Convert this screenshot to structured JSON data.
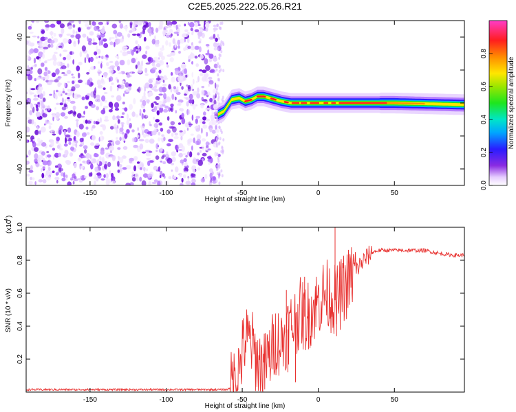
{
  "title": "C2E5.2025.222.05.26.R21",
  "chart_data": [
    {
      "type": "heatmap",
      "xlabel": "Height of straight line (km)",
      "ylabel": "Frequency (Hz)",
      "xlim": [
        -192,
        96
      ],
      "ylim": [
        -50,
        50
      ],
      "x_ticks": [
        -150,
        -100,
        -50,
        0,
        50
      ],
      "y_ticks": [
        -40,
        -20,
        0,
        20,
        40
      ],
      "colorbar": {
        "label": "Normalized spectral amplitude",
        "range": [
          0,
          1
        ],
        "ticks": [
          0.0,
          0.2,
          0.4,
          0.6,
          0.8
        ]
      },
      "noise_region_x": [
        -192,
        -65
      ],
      "signal_track": [
        {
          "x": -66,
          "f": -7
        },
        {
          "x": -62,
          "f": -5
        },
        {
          "x": -57,
          "f": 2
        },
        {
          "x": -52,
          "f": 3
        },
        {
          "x": -48,
          "f": 1
        },
        {
          "x": -44,
          "f": 2
        },
        {
          "x": -40,
          "f": 4
        },
        {
          "x": -36,
          "f": 4
        },
        {
          "x": -32,
          "f": 3
        },
        {
          "x": -28,
          "f": 2
        },
        {
          "x": -24,
          "f": 1
        },
        {
          "x": -18,
          "f": 0
        },
        {
          "x": -10,
          "f": 0
        },
        {
          "x": 0,
          "f": 0
        },
        {
          "x": 20,
          "f": 0
        },
        {
          "x": 50,
          "f": 0
        },
        {
          "x": 96,
          "f": -1
        }
      ]
    },
    {
      "type": "line",
      "xlabel": "Height of straight line (km)",
      "ylabel": "SNR (10 * v/v)",
      "y_multiplier": "(x10",
      "y_multiplier_exp": "4",
      "xlim": [
        -192,
        96
      ],
      "ylim": [
        0,
        1.0
      ],
      "x_ticks": [
        -150,
        -100,
        -50,
        0,
        50
      ],
      "y_ticks": [
        0.2,
        0.4,
        0.6,
        0.8,
        1.0
      ],
      "series": [
        {
          "color": "#e8312f",
          "anchors": [
            {
              "x": -192,
              "y": 0.015
            },
            {
              "x": -60,
              "y": 0.015
            },
            {
              "x": -56,
              "y": 0.04
            },
            {
              "x": -52,
              "y": 0.15
            },
            {
              "x": -48,
              "y": 0.32
            },
            {
              "x": -44,
              "y": 0.3
            },
            {
              "x": -40,
              "y": 0.18
            },
            {
              "x": -36,
              "y": 0.14
            },
            {
              "x": -32,
              "y": 0.22
            },
            {
              "x": -28,
              "y": 0.32
            },
            {
              "x": -24,
              "y": 0.3
            },
            {
              "x": -20,
              "y": 0.38
            },
            {
              "x": -16,
              "y": 0.42
            },
            {
              "x": -12,
              "y": 0.48
            },
            {
              "x": -8,
              "y": 0.45
            },
            {
              "x": -4,
              "y": 0.5
            },
            {
              "x": 0,
              "y": 0.55
            },
            {
              "x": 4,
              "y": 0.6
            },
            {
              "x": 8,
              "y": 0.58
            },
            {
              "x": 12,
              "y": 0.55
            },
            {
              "x": 16,
              "y": 0.62
            },
            {
              "x": 20,
              "y": 0.67
            },
            {
              "x": 24,
              "y": 0.73
            },
            {
              "x": 28,
              "y": 0.78
            },
            {
              "x": 32,
              "y": 0.82
            },
            {
              "x": 36,
              "y": 0.85
            },
            {
              "x": 40,
              "y": 0.86
            },
            {
              "x": 50,
              "y": 0.86
            },
            {
              "x": 60,
              "y": 0.86
            },
            {
              "x": 70,
              "y": 0.86
            },
            {
              "x": 80,
              "y": 0.84
            },
            {
              "x": 90,
              "y": 0.83
            },
            {
              "x": 96,
              "y": 0.83
            }
          ],
          "spikes": [
            {
              "x": 11,
              "y": 1.0
            },
            {
              "x": 12,
              "y": 0.34
            },
            {
              "x": -20,
              "y": 0.12
            },
            {
              "x": -15,
              "y": 0.06
            },
            {
              "x": -21,
              "y": 0.62
            },
            {
              "x": -9,
              "y": 0.7
            }
          ]
        }
      ]
    }
  ]
}
